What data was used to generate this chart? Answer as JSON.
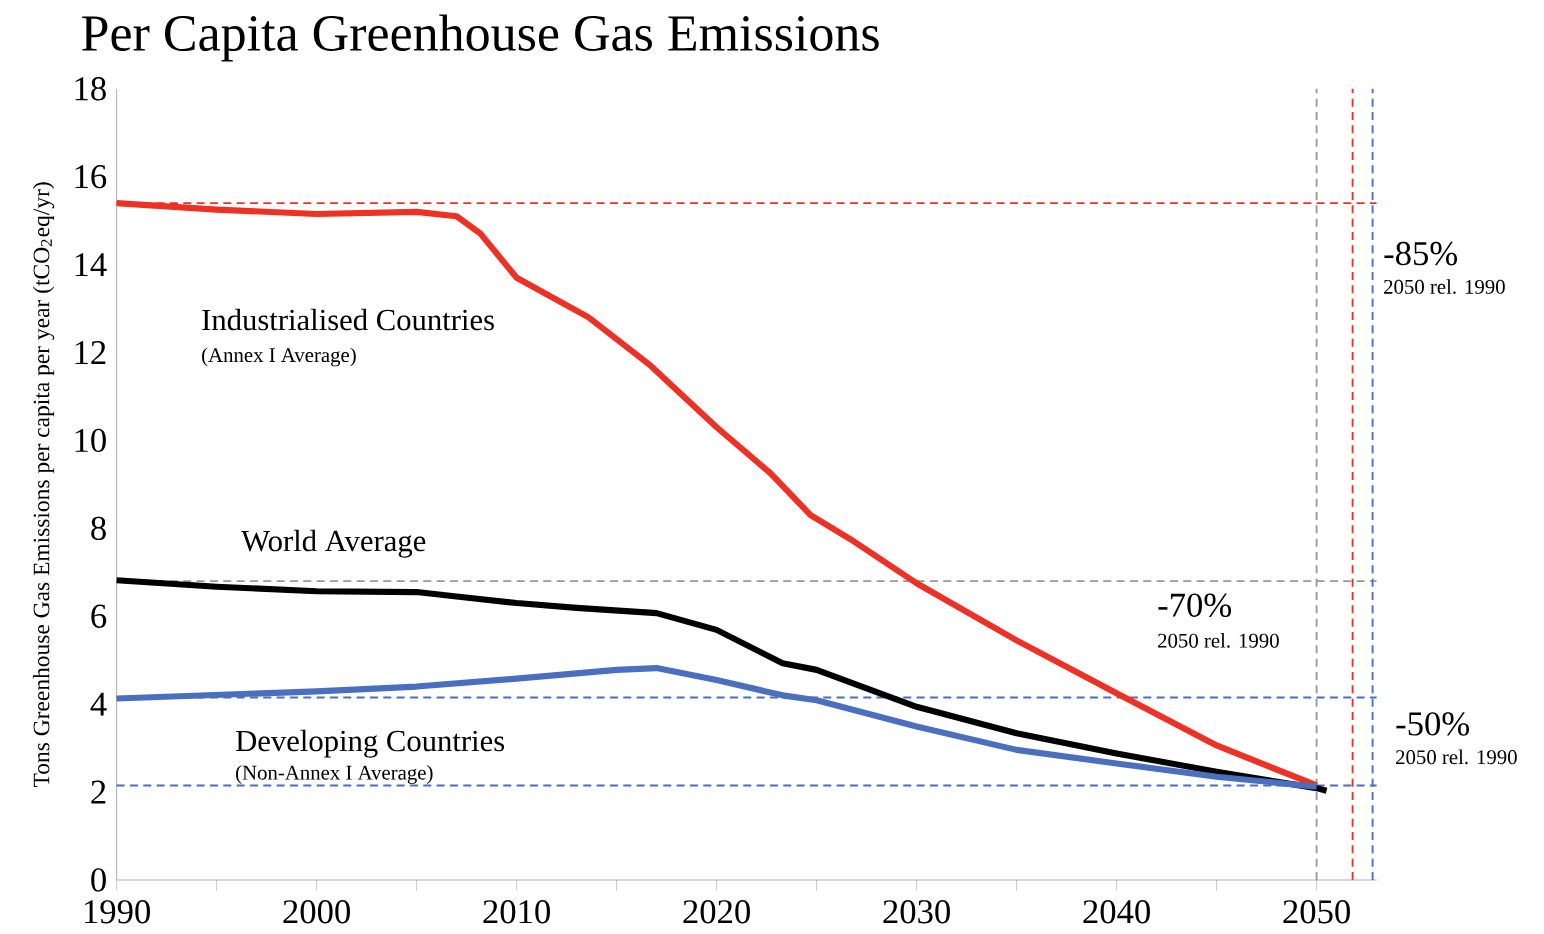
{
  "chart_data": {
    "type": "line",
    "title": "Per Capita Greenhouse Gas Emissions",
    "ylabel": "Tons Greenhouse Gas Emissions per capita per year (tCO$_{2}$eq/yr)",
    "xlim": [
      1990,
      2053
    ],
    "ylim": [
      0,
      18
    ],
    "xticks": [
      1990,
      {
        "value": 1995,
        "label": null
      },
      2000,
      {
        "value": 2005,
        "label": null
      },
      2010,
      {
        "value": 2015,
        "label": null
      },
      2020,
      {
        "value": 2025,
        "label": null
      },
      2030,
      {
        "value": 2035,
        "label": null
      },
      2040,
      {
        "value": 2045,
        "label": null
      },
      2050
    ],
    "yticks": [
      0,
      2,
      4,
      6,
      8,
      10,
      12,
      14,
      16,
      18
    ],
    "series": [
      {
        "name": "Industrialised Countries",
        "color": "#ee3124",
        "x": [
          1990,
          1995,
          2000,
          2005,
          2007,
          2008.2,
          2010,
          2013.6,
          2016.7,
          2020,
          2022.7,
          2024.7,
          2026.7,
          2030,
          2035,
          2040,
          2045,
          2050
        ],
        "values": [
          15.4,
          15.25,
          15.15,
          15.2,
          15.1,
          14.7,
          13.7,
          12.8,
          11.7,
          10.3,
          9.25,
          8.3,
          7.75,
          6.75,
          5.45,
          4.25,
          3.06,
          2.15
        ]
      },
      {
        "name": "World Average",
        "color": "#000000",
        "x": [
          1990,
          1995,
          2000,
          2005,
          2007,
          2010,
          2013,
          2017,
          2020,
          2023.3,
          2025,
          2030,
          2035,
          2040,
          2045,
          2050,
          2050.5
        ],
        "values": [
          6.82,
          6.67,
          6.57,
          6.55,
          6.45,
          6.3,
          6.19,
          6.07,
          5.69,
          4.93,
          4.78,
          3.94,
          3.34,
          2.88,
          2.46,
          2.09,
          2.03
        ]
      },
      {
        "name": "Developing Countries",
        "color": "#4a6fbf",
        "x": [
          1990,
          2000,
          2005,
          2010,
          2015,
          2017,
          2020,
          2023.3,
          2025,
          2030,
          2035,
          2040,
          2045,
          2050
        ],
        "values": [
          4.13,
          4.29,
          4.4,
          4.58,
          4.78,
          4.82,
          4.55,
          4.2,
          4.09,
          3.49,
          2.96,
          2.65,
          2.35,
          2.12
        ]
      }
    ],
    "ref_lines": [
      {
        "axis": "y",
        "value": 15.4,
        "color": "#ee3124",
        "line_style": "dashed"
      },
      {
        "axis": "y",
        "value": 6.8,
        "color": "#999999",
        "line_style": "dashed"
      },
      {
        "axis": "y",
        "value": 4.15,
        "color": "#4a6fbf",
        "line_style": "dashed"
      },
      {
        "axis": "y",
        "value": 2.15,
        "color": "#4a6fbf",
        "line_style": "dashed"
      },
      {
        "axis": "x",
        "value": 2051.8,
        "color": "#ee3124",
        "line_style": "dashed"
      },
      {
        "axis": "x",
        "value": 2050,
        "color": "#999999",
        "line_style": "dashed"
      },
      {
        "axis": "x",
        "value": 2052.8,
        "color": "#4a6fbf",
        "line_style": "dashed"
      }
    ],
    "annotations": [
      "(Annex I Average)",
      "(Non-Annex I Average)",
      "-85%",
      "2050 rel. 1990",
      "-70%",
      "2050 rel. 1990",
      "-50%",
      "2050 rel. 1990"
    ],
    "line_style": "solid",
    "marker": "none"
  }
}
